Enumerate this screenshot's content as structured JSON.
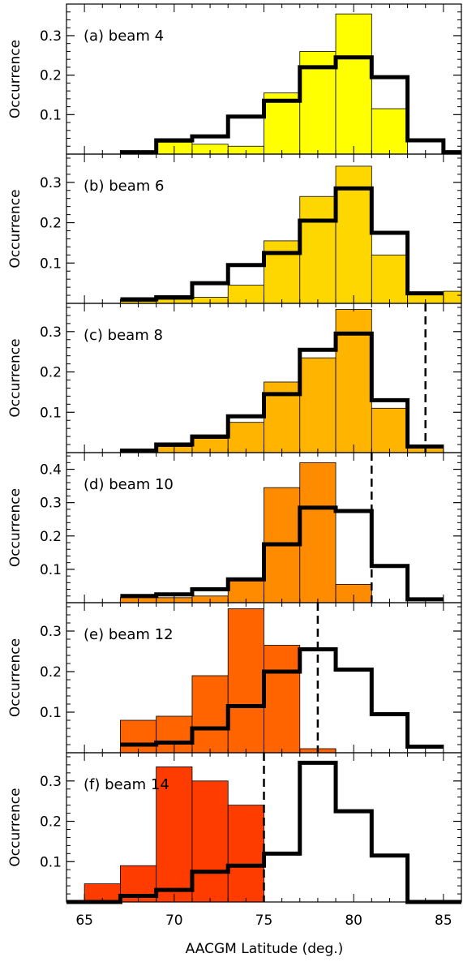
{
  "chart_data": [
    {
      "type": "histogram",
      "panel_label": "(a) beam 4",
      "fill_color": "#FFFF00",
      "xlim": [
        64,
        86
      ],
      "ylim": [
        0,
        0.38
      ],
      "yticks": [
        0.1,
        0.2,
        0.3
      ],
      "ytick_labels": [
        "0.1",
        "0.2",
        "0.3"
      ],
      "ylabel": "Occurrence",
      "filled_series": {
        "bin_edges": [
          67,
          69,
          71,
          73,
          75,
          77,
          79,
          81,
          83
        ],
        "values": [
          0.005,
          0.03,
          0.025,
          0.02,
          0.155,
          0.26,
          0.355,
          0.115
        ]
      },
      "line_series": {
        "bin_edges": [
          67,
          69,
          71,
          73,
          75,
          77,
          79,
          81,
          83,
          85,
          86
        ],
        "values": [
          0.005,
          0.035,
          0.045,
          0.095,
          0.135,
          0.22,
          0.245,
          0.195,
          0.035,
          0.005
        ]
      },
      "dashed_line_x": null
    },
    {
      "type": "histogram",
      "panel_label": "(b) beam 6",
      "fill_color": "#FFD700",
      "xlim": [
        64,
        86
      ],
      "ylim": [
        0,
        0.37
      ],
      "yticks": [
        0.1,
        0.2,
        0.3
      ],
      "ytick_labels": [
        "0.1",
        "0.2",
        "0.3"
      ],
      "ylabel": "Occurrence",
      "filled_series": {
        "bin_edges": [
          67,
          69,
          71,
          73,
          75,
          77,
          79,
          81,
          83,
          85,
          86
        ],
        "values": [
          0.005,
          0.01,
          0.015,
          0.045,
          0.155,
          0.265,
          0.34,
          0.12,
          0.025,
          0.03
        ]
      },
      "line_series": {
        "bin_edges": [
          67,
          69,
          71,
          73,
          75,
          77,
          79,
          81,
          83,
          85
        ],
        "values": [
          0.01,
          0.015,
          0.05,
          0.095,
          0.125,
          0.205,
          0.285,
          0.175,
          0.025
        ]
      },
      "dashed_line_x": null
    },
    {
      "type": "histogram",
      "panel_label": "(c) beam 8",
      "fill_color": "#FFB400",
      "xlim": [
        64,
        86
      ],
      "ylim": [
        0,
        0.37
      ],
      "yticks": [
        0.1,
        0.2,
        0.3
      ],
      "ytick_labels": [
        "0.1",
        "0.2",
        "0.3"
      ],
      "ylabel": "Occurrence",
      "filled_series": {
        "bin_edges": [
          67,
          69,
          71,
          73,
          75,
          77,
          79,
          81,
          83,
          85
        ],
        "values": [
          0.005,
          0.015,
          0.035,
          0.075,
          0.175,
          0.235,
          0.355,
          0.11,
          0.015
        ]
      },
      "line_series": {
        "bin_edges": [
          67,
          69,
          71,
          73,
          75,
          77,
          79,
          81,
          83,
          85
        ],
        "values": [
          0.005,
          0.02,
          0.04,
          0.09,
          0.145,
          0.255,
          0.295,
          0.13,
          0.015
        ]
      },
      "dashed_line_x": 84
    },
    {
      "type": "histogram",
      "panel_label": "(d) beam 10",
      "fill_color": "#FF8C00",
      "xlim": [
        64,
        86
      ],
      "ylim": [
        0,
        0.45
      ],
      "yticks": [
        0.1,
        0.2,
        0.3,
        0.4
      ],
      "ytick_labels": [
        "0.1",
        "0.2",
        "0.3",
        "0.4"
      ],
      "ylabel": "Occurrence",
      "filled_series": {
        "bin_edges": [
          67,
          69,
          71,
          73,
          75,
          77,
          79,
          81
        ],
        "values": [
          0.015,
          0.015,
          0.02,
          0.065,
          0.345,
          0.42,
          0.055
        ]
      },
      "line_series": {
        "bin_edges": [
          67,
          69,
          71,
          73,
          75,
          77,
          79,
          81,
          83,
          85
        ],
        "values": [
          0.02,
          0.025,
          0.04,
          0.07,
          0.175,
          0.285,
          0.275,
          0.11,
          0.01
        ]
      },
      "dashed_line_x": 81
    },
    {
      "type": "histogram",
      "panel_label": "(e) beam 12",
      "fill_color": "#FF6400",
      "xlim": [
        64,
        86
      ],
      "ylim": [
        0,
        0.37
      ],
      "yticks": [
        0.1,
        0.2,
        0.3
      ],
      "ytick_labels": [
        "0.1",
        "0.2",
        "0.3"
      ],
      "ylabel": "Occurrence",
      "filled_series": {
        "bin_edges": [
          67,
          69,
          71,
          73,
          75,
          77,
          79
        ],
        "values": [
          0.08,
          0.09,
          0.19,
          0.355,
          0.265,
          0.01
        ]
      },
      "line_series": {
        "bin_edges": [
          67,
          69,
          71,
          73,
          75,
          77,
          79,
          81,
          83,
          85
        ],
        "values": [
          0.02,
          0.025,
          0.06,
          0.115,
          0.2,
          0.255,
          0.205,
          0.095,
          0.015
        ]
      },
      "dashed_line_x": 78
    },
    {
      "type": "histogram",
      "panel_label": "(f) beam 14",
      "fill_color": "#FF3C00",
      "xlim": [
        64,
        86
      ],
      "ylim": [
        0,
        0.37
      ],
      "yticks": [
        0.1,
        0.2,
        0.3
      ],
      "ytick_labels": [
        "0.1",
        "0.2",
        "0.3"
      ],
      "ylabel": "Occurrence",
      "filled_series": {
        "bin_edges": [
          65,
          67,
          69,
          71,
          73,
          75
        ],
        "values": [
          0.045,
          0.09,
          0.335,
          0.3,
          0.24
        ]
      },
      "line_series": {
        "bin_edges": [
          64,
          67,
          69,
          71,
          73,
          75,
          77,
          79,
          81,
          83,
          86
        ],
        "values": [
          0,
          0.015,
          0.03,
          0.075,
          0.09,
          0.12,
          0.345,
          0.225,
          0.115,
          0
        ]
      },
      "dashed_line_x": 75
    }
  ],
  "xaxis": {
    "label": "AACGM Latitude (deg.)",
    "ticks": [
      65,
      70,
      75,
      80,
      85
    ],
    "tick_labels": [
      "65",
      "70",
      "75",
      "80",
      "85"
    ]
  }
}
